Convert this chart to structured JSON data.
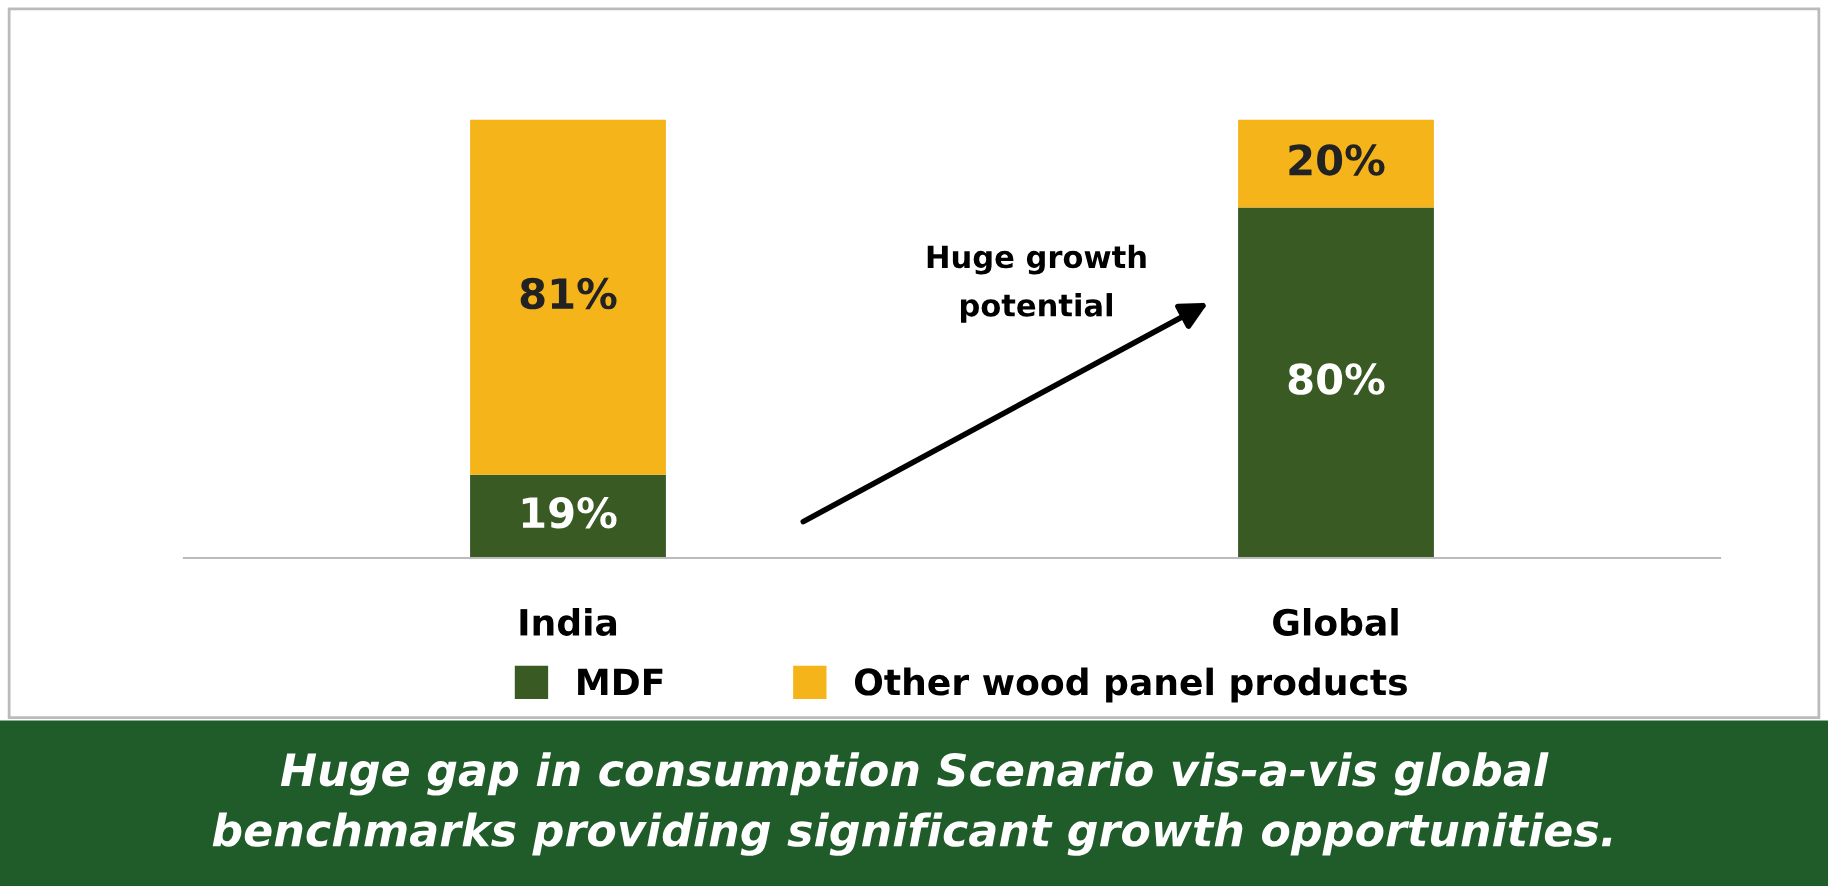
{
  "chart_data": {
    "type": "bar",
    "stacked": true,
    "categories": [
      "India",
      "Global"
    ],
    "series": [
      {
        "name": "MDF",
        "color": "#3a5a24",
        "values": [
          19,
          80
        ],
        "value_labels": [
          "19%",
          "80%"
        ]
      },
      {
        "name": "Other wood panel products",
        "color": "#f5b41a",
        "values": [
          81,
          20
        ],
        "value_labels": [
          "81%",
          "20%"
        ]
      }
    ],
    "legend": "bottom",
    "grid": false,
    "annotations": [
      "Huge growth potential",
      "Huge gap in consumption Scenario vis-a-vis global benchmarks providing significant growth opportunities."
    ]
  }
}
